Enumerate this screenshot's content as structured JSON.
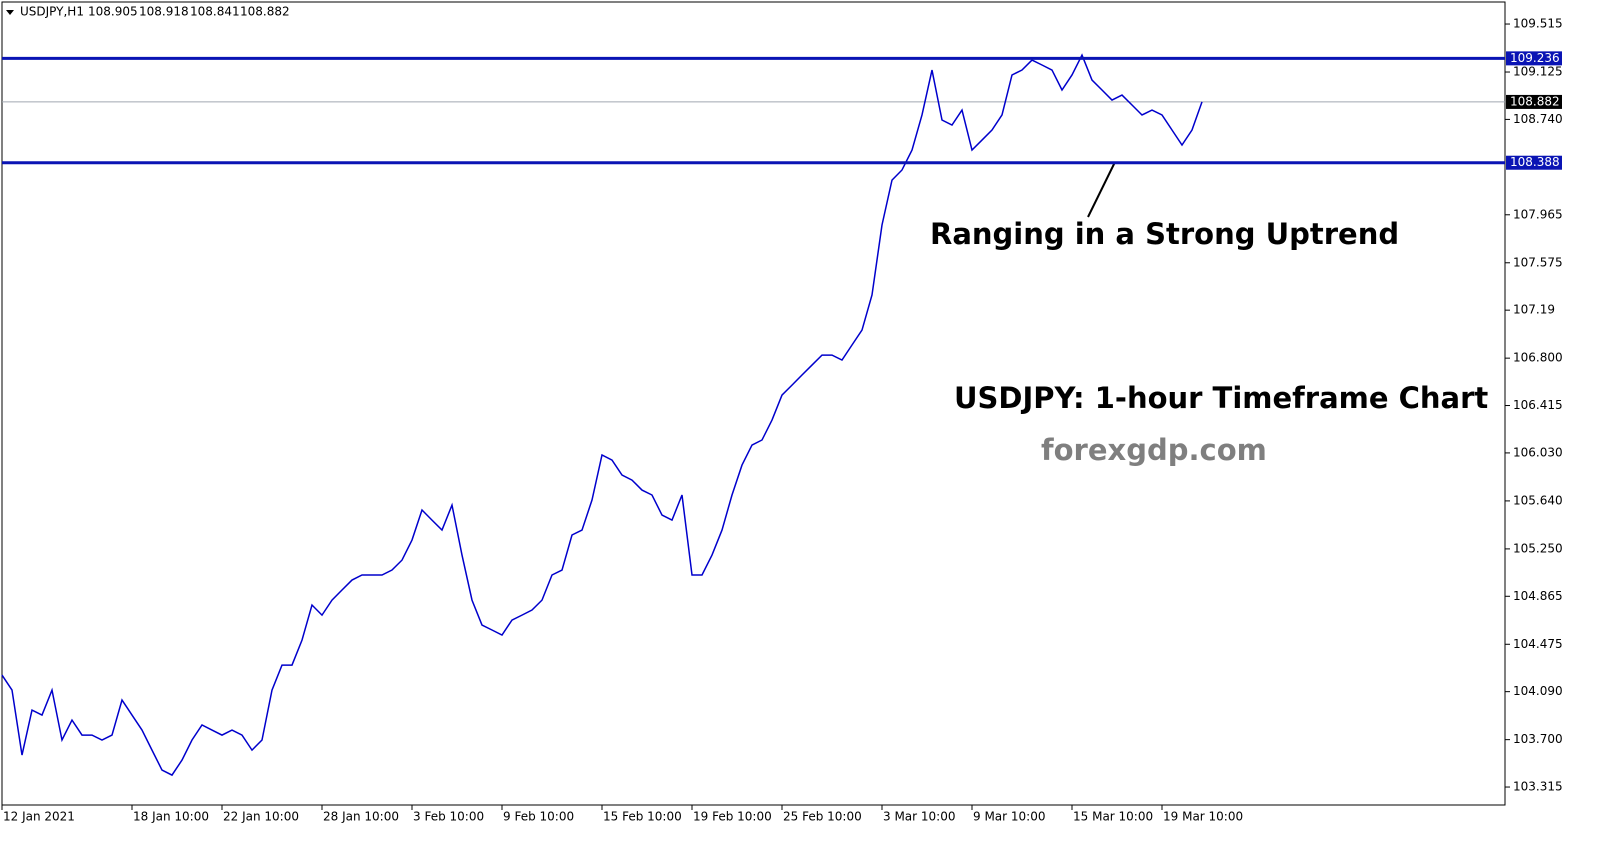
{
  "chart_data": {
    "type": "line",
    "symbol": "USDJPY,H1",
    "ohlc": [
      108.905,
      108.918,
      108.841,
      108.882
    ],
    "annotations": [
      "Ranging in a Strong Uptrend",
      "USDJPY: 1-hour Timeframe Chart",
      "forexgdp.com"
    ],
    "color": "#0000cc",
    "levels": [
      {
        "value": 109.236,
        "color": "#0a14b4"
      },
      {
        "value": 108.388,
        "color": "#0a14b4"
      }
    ],
    "ylim": [
      103.169,
      109.694
    ],
    "yticks": [
      109.515,
      109.125,
      {
        "value": 108.74,
        "label": "108.740"
      },
      107.965,
      107.575,
      107.19,
      {
        "value": 106.8,
        "label": "106.800"
      },
      106.415,
      {
        "value": 106.03,
        "label": "106.030"
      },
      {
        "value": 105.64,
        "label": "105.640"
      },
      {
        "value": 105.25,
        "label": "105.250"
      },
      104.865,
      104.475,
      {
        "value": 104.09,
        "label": "104.090"
      },
      {
        "value": 103.7,
        "label": "103.700"
      },
      103.315
    ],
    "categories": [
      "12 Jan 2021",
      null,
      null,
      null,
      null,
      null,
      null,
      null,
      null,
      null,
      null,
      null,
      null,
      "18 Jan 10:00",
      null,
      null,
      null,
      null,
      null,
      null,
      null,
      null,
      "22 Jan 10:00",
      null,
      null,
      null,
      null,
      null,
      null,
      null,
      null,
      null,
      "28 Jan 10:00",
      null,
      null,
      null,
      null,
      null,
      null,
      null,
      null,
      "3 Feb 10:00",
      null,
      null,
      null,
      null,
      null,
      null,
      null,
      null,
      "9 Feb 10:00",
      null,
      null,
      null,
      null,
      null,
      null,
      null,
      null,
      null,
      "15 Feb 10:00",
      null,
      null,
      null,
      null,
      null,
      null,
      null,
      null,
      "19 Feb 10:00",
      null,
      null,
      null,
      null,
      null,
      null,
      null,
      null,
      "25 Feb 10:00",
      null,
      null,
      null,
      null,
      null,
      null,
      null,
      null,
      null,
      "3 Mar 10:00",
      null,
      null,
      null,
      null,
      null,
      null,
      null,
      null,
      "9 Mar 10:00",
      null,
      null,
      null,
      null,
      null,
      null,
      null,
      null,
      null,
      "15 Mar 10:00",
      null,
      null,
      null,
      null,
      null,
      null,
      null,
      null,
      "19 Mar 10:00",
      null,
      null,
      null,
      null
    ],
    "values": [
      104.225,
      104.103,
      103.575,
      103.94,
      103.9,
      104.103,
      103.697,
      103.859,
      103.737,
      103.737,
      103.697,
      103.737,
      104.022,
      103.9,
      103.778,
      103.615,
      103.453,
      103.412,
      103.534,
      103.697,
      103.819,
      103.778,
      103.737,
      103.778,
      103.737,
      103.615,
      103.697,
      104.103,
      104.306,
      104.306,
      104.509,
      104.794,
      104.712,
      104.834,
      104.916,
      104.997,
      105.038,
      105.038,
      105.038,
      105.078,
      105.159,
      105.322,
      105.566,
      105.484,
      105.403,
      105.606,
      105.2,
      104.834,
      104.631,
      104.591,
      104.55,
      104.672,
      104.712,
      104.753,
      104.834,
      105.038,
      105.078,
      105.363,
      105.403,
      105.647,
      106.013,
      105.972,
      105.85,
      105.809,
      105.728,
      105.688,
      105.525,
      105.484,
      105.688,
      105.038,
      105.038,
      105.2,
      105.403,
      105.688,
      105.931,
      106.094,
      106.135,
      106.297,
      106.5,
      106.581,
      106.663,
      106.744,
      106.825,
      106.825,
      106.785,
      106.907,
      107.028,
      107.313,
      107.882,
      108.247,
      108.329,
      108.491,
      108.776,
      109.141,
      108.735,
      108.694,
      108.816,
      108.491,
      108.572,
      108.654,
      108.776,
      109.101,
      109.141,
      109.222,
      109.182,
      109.141,
      108.979,
      109.101,
      109.263,
      109.06,
      108.979,
      108.897,
      108.938,
      108.857,
      108.776,
      108.816,
      108.776,
      108.654,
      108.532,
      108.654,
      108.882
    ]
  }
}
